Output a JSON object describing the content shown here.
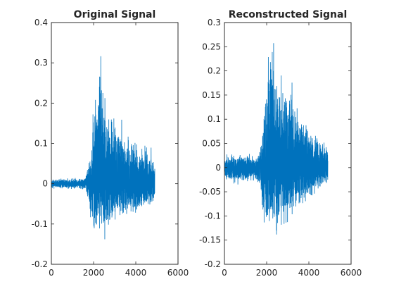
{
  "chart_data": [
    {
      "type": "line",
      "title": "Original Signal",
      "xlabel": "",
      "ylabel": "",
      "xlim": [
        0,
        6000
      ],
      "ylim": [
        -0.2,
        0.4
      ],
      "xticks": [
        0,
        2000,
        4000,
        6000
      ],
      "yticks": [
        -0.2,
        -0.1,
        0,
        0.1,
        0.2,
        0.3,
        0.4
      ],
      "xtick_labels": [
        "0",
        "2000",
        "4000",
        "6000"
      ],
      "ytick_labels": [
        "-0.2",
        "-0.1",
        "0",
        "0.1",
        "0.2",
        "0.3",
        "0.4"
      ],
      "grid": false,
      "color": "#0072BD",
      "series": [
        {
          "x": [
            0,
            1600,
            1700,
            1800,
            1900,
            2000,
            2100,
            2200,
            2300,
            2400,
            2500,
            2600,
            2700,
            2800,
            2900,
            3000,
            3100,
            3200,
            3300,
            3400,
            3500,
            3600,
            3700,
            3800,
            3900,
            4000,
            4100,
            4200,
            4300,
            4400,
            4500,
            4600,
            4700,
            4800,
            4900
          ],
          "upper": [
            0.012,
            0.015,
            0.05,
            0.06,
            0.1,
            0.23,
            0.28,
            0.33,
            0.37,
            0.33,
            0.28,
            0.2,
            0.2,
            0.16,
            0.2,
            0.21,
            0.2,
            0.17,
            0.18,
            0.15,
            0.12,
            0.14,
            0.12,
            0.13,
            0.12,
            0.13,
            0.11,
            0.11,
            0.1,
            0.1,
            0.11,
            0.08,
            0.1,
            0.09,
            0.05
          ],
          "lower": [
            -0.012,
            -0.015,
            -0.04,
            -0.05,
            -0.12,
            -0.13,
            -0.15,
            -0.1,
            -0.12,
            -0.11,
            -0.15,
            -0.12,
            -0.11,
            -0.13,
            -0.15,
            -0.11,
            -0.1,
            -0.09,
            -0.1,
            -0.11,
            -0.1,
            -0.08,
            -0.09,
            -0.08,
            -0.09,
            -0.08,
            -0.08,
            -0.07,
            -0.07,
            -0.06,
            -0.07,
            -0.07,
            -0.06,
            -0.05,
            -0.04
          ]
        }
      ]
    },
    {
      "type": "line",
      "title": "Reconstructed Signal",
      "xlabel": "",
      "ylabel": "",
      "xlim": [
        0,
        6000
      ],
      "ylim": [
        -0.2,
        0.3
      ],
      "xticks": [
        0,
        2000,
        4000,
        6000
      ],
      "yticks": [
        -0.2,
        -0.15,
        -0.1,
        -0.05,
        0,
        0.05,
        0.1,
        0.15,
        0.2,
        0.25,
        0.3
      ],
      "xtick_labels": [
        "0",
        "2000",
        "4000",
        "6000"
      ],
      "ytick_labels": [
        "-0.2",
        "-0.15",
        "-0.1",
        "-0.05",
        "0",
        "0.05",
        "0.1",
        "0.15",
        "0.2",
        "0.25",
        "0.3"
      ],
      "grid": false,
      "color": "#0072BD",
      "series": [
        {
          "x": [
            0,
            100,
            200,
            400,
            600,
            800,
            1000,
            1200,
            1400,
            1600,
            1700,
            1800,
            1900,
            2000,
            2100,
            2200,
            2300,
            2400,
            2500,
            2600,
            2700,
            2800,
            2900,
            3000,
            3100,
            3200,
            3300,
            3400,
            3500,
            3600,
            3700,
            3800,
            3900,
            4000,
            4100,
            4200,
            4300,
            4400,
            4500,
            4600,
            4700,
            4800,
            4900
          ],
          "upper": [
            0.01,
            0.03,
            0.025,
            0.03,
            0.02,
            0.03,
            0.025,
            0.03,
            0.02,
            0.03,
            0.04,
            0.1,
            0.15,
            0.2,
            0.25,
            0.3,
            0.29,
            0.24,
            0.2,
            0.16,
            0.22,
            0.18,
            0.2,
            0.17,
            0.16,
            0.2,
            0.17,
            0.15,
            0.12,
            0.1,
            0.13,
            0.1,
            0.11,
            0.1,
            0.09,
            0.08,
            0.07,
            0.08,
            0.07,
            0.06,
            0.06,
            0.05,
            0.04
          ],
          "lower": [
            -0.01,
            -0.03,
            -0.03,
            -0.035,
            -0.04,
            -0.03,
            -0.035,
            -0.03,
            -0.03,
            -0.035,
            -0.04,
            -0.13,
            -0.16,
            -0.15,
            -0.13,
            -0.14,
            -0.12,
            -0.14,
            -0.16,
            -0.15,
            -0.14,
            -0.12,
            -0.13,
            -0.12,
            -0.11,
            -0.1,
            -0.1,
            -0.09,
            -0.09,
            -0.08,
            -0.08,
            -0.09,
            -0.07,
            -0.07,
            -0.07,
            -0.06,
            -0.06,
            -0.06,
            -0.05,
            -0.05,
            -0.05,
            -0.04,
            -0.03
          ]
        }
      ]
    }
  ]
}
